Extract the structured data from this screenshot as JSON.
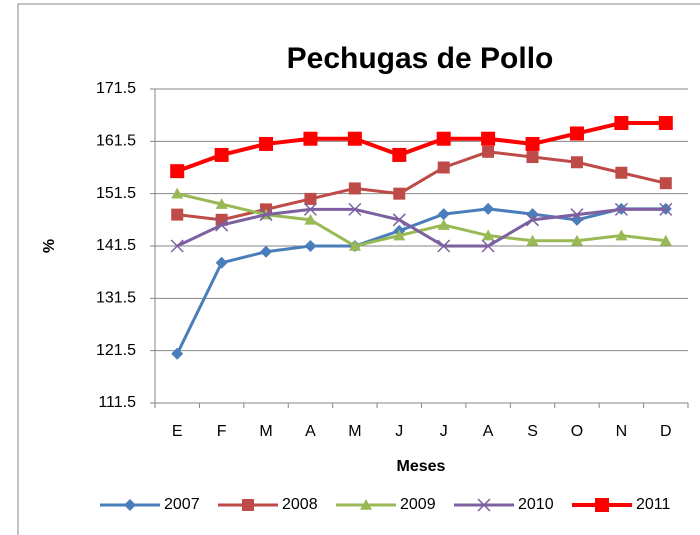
{
  "chart_data": {
    "type": "line",
    "title": "Pechugas de Pollo",
    "ylabel": "%",
    "xlabel": "Meses",
    "categories": [
      "E",
      "F",
      "M",
      "A",
      "M",
      "J",
      "J",
      "A",
      "S",
      "O",
      "N",
      "D"
    ],
    "ylim": [
      111.5,
      171.5
    ],
    "yticks": [
      111.5,
      121.5,
      131.5,
      141.5,
      151.5,
      161.5,
      171.5
    ],
    "grid": true,
    "legend": "bottom",
    "series": [
      {
        "name": "2007",
        "color": "#4a7ebb",
        "marker": "diamond",
        "values": [
          120.9,
          138.3,
          140.4,
          141.5,
          141.5,
          144.4,
          147.6,
          148.6,
          147.6,
          146.5,
          148.6,
          148.6
        ]
      },
      {
        "name": "2008",
        "color": "#be4b48",
        "marker": "square",
        "values": [
          147.5,
          146.5,
          148.5,
          150.5,
          152.5,
          151.5,
          156.5,
          159.5,
          158.5,
          157.5,
          155.5,
          153.5
        ]
      },
      {
        "name": "2009",
        "color": "#98b954",
        "marker": "triangle",
        "values": [
          151.5,
          149.5,
          147.5,
          146.5,
          141.5,
          143.5,
          145.5,
          143.5,
          142.5,
          142.5,
          143.5,
          142.5
        ]
      },
      {
        "name": "2010",
        "color": "#7d60a0",
        "marker": "x",
        "values": [
          141.5,
          145.5,
          147.5,
          148.5,
          148.5,
          146.5,
          141.5,
          141.5,
          146.5,
          147.5,
          148.5,
          148.5
        ]
      },
      {
        "name": "2011",
        "color": "#ff0000",
        "marker": "square",
        "values": [
          155.8,
          158.9,
          161.0,
          162.0,
          162.0,
          158.9,
          162.0,
          162.0,
          161.0,
          163.0,
          165.0,
          165.0
        ]
      }
    ]
  }
}
